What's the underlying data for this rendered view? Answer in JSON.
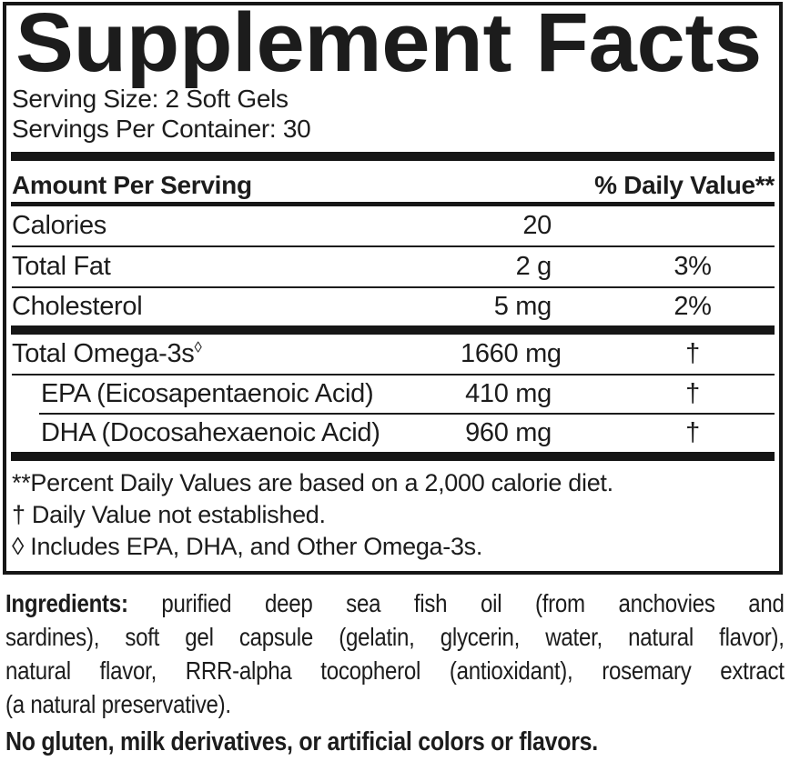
{
  "title": "Supplement Facts",
  "serving": {
    "size": "Serving Size: 2 Soft Gels",
    "per_container": "Servings Per Container: 30"
  },
  "table": {
    "header": {
      "left": "Amount Per Serving",
      "right": "% Daily Value**"
    },
    "rows": [
      {
        "name": "Calories",
        "amount": "20",
        "dv": ""
      },
      {
        "name": "Total Fat",
        "amount": "2 g",
        "dv": "3%"
      },
      {
        "name": "Cholesterol",
        "amount": "5 mg",
        "dv": "2%"
      },
      {
        "name": "Total Omega-3s",
        "sup": "◊",
        "amount": "1660 mg",
        "dv": "†"
      },
      {
        "name": "EPA (Eicosapentaenoic Acid)",
        "amount": "410 mg",
        "dv": "†"
      },
      {
        "name": "DHA (Docosahexaenoic Acid)",
        "amount": "960 mg",
        "dv": "†"
      }
    ]
  },
  "footnotes": [
    "**Percent Daily Values are based on a 2,000 calorie diet.",
    "† Daily Value not established.",
    "◊ Includes EPA, DHA, and Other Omega-3s."
  ],
  "ingredients": {
    "label": "Ingredients:",
    "line1": " purified deep sea fish oil (from anchovies and",
    "line2": "sardines), soft gel capsule (gelatin, glycerin, water, natural flavor),",
    "line3": "natural flavor, RRR-alpha tocopherol (antioxidant), rosemary extract",
    "line4": "(a natural preservative)."
  },
  "no_gluten": "No gluten, milk derivatives, or artificial colors or flavors.",
  "colors": {
    "text": "#1c1c1c",
    "rule": "#161616",
    "background": "#ffffff"
  }
}
